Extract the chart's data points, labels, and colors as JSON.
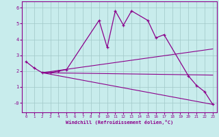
{
  "title": "",
  "xlabel": "Windchill (Refroidissement éolien,°C)",
  "bg_color": "#c8ecec",
  "line_color": "#8b008b",
  "grid_color": "#a0c8c8",
  "xlim": [
    -0.5,
    23.5
  ],
  "ylim": [
    -0.6,
    6.4
  ],
  "xticks": [
    0,
    1,
    2,
    3,
    4,
    5,
    6,
    7,
    8,
    9,
    10,
    11,
    12,
    13,
    14,
    15,
    16,
    17,
    18,
    19,
    20,
    21,
    22,
    23
  ],
  "yticks": [
    0,
    1,
    2,
    3,
    4,
    5,
    6
  ],
  "ytick_labels": [
    "-0",
    "1",
    "2",
    "3",
    "4",
    "5",
    "6"
  ],
  "main_x": [
    0,
    1,
    2,
    3,
    4,
    5,
    9,
    10,
    11,
    12,
    13,
    15,
    16,
    17,
    20,
    21,
    22,
    23
  ],
  "main_y": [
    2.6,
    2.2,
    1.9,
    1.9,
    2.0,
    2.1,
    5.2,
    3.5,
    5.8,
    4.9,
    5.8,
    5.2,
    4.1,
    4.3,
    1.7,
    1.1,
    0.7,
    -0.1
  ],
  "straight_lines": [
    {
      "x": [
        2,
        23
      ],
      "y": [
        1.9,
        -0.1
      ]
    },
    {
      "x": [
        2,
        23
      ],
      "y": [
        1.9,
        3.4
      ]
    },
    {
      "x": [
        2,
        23
      ],
      "y": [
        1.9,
        1.75
      ]
    }
  ]
}
